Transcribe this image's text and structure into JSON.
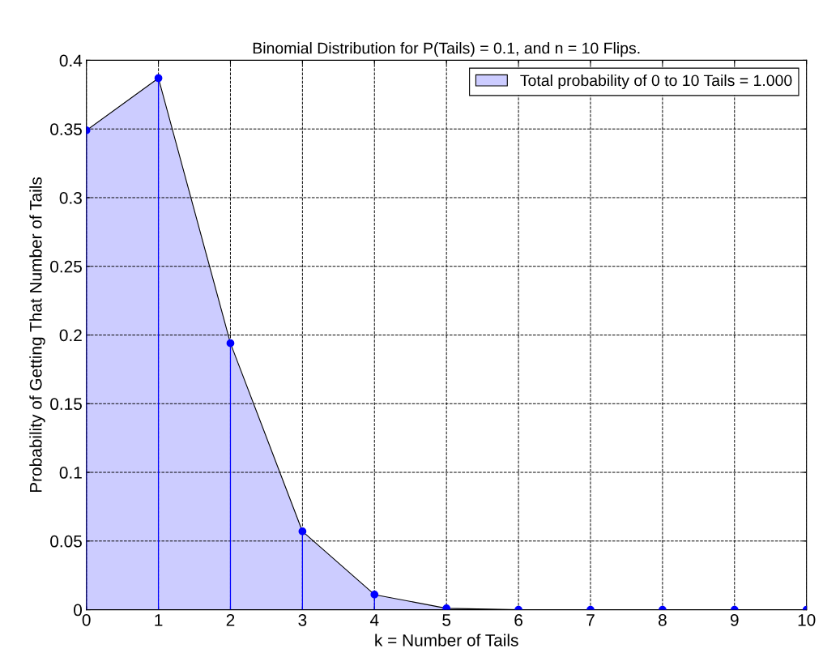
{
  "chart_data": {
    "type": "area",
    "title": "Binomial Distribution for P(Tails) = 0.1, and n = 10 Flips.",
    "xlabel": "k = Number of Tails",
    "ylabel": "Probability of Getting That Number of Tails",
    "x": [
      0,
      1,
      2,
      3,
      4,
      5,
      6,
      7,
      8,
      9,
      10
    ],
    "series": [
      {
        "name": "Total probability of 0 to 10 Tails = 1.000",
        "color": "#ccccff",
        "values": [
          0.349,
          0.387,
          0.194,
          0.057,
          0.011,
          0.001,
          0,
          0,
          0,
          0,
          0
        ]
      },
      {
        "type": "lollipop",
        "marker": "circle",
        "color": "#0000ff",
        "values": [
          0.349,
          0.387,
          0.194,
          0.057,
          0.011,
          0.001,
          0,
          0,
          0,
          0,
          0
        ]
      }
    ],
    "xlim": [
      0,
      10
    ],
    "ylim": [
      0,
      0.4
    ],
    "xticks": [
      0,
      1,
      2,
      3,
      4,
      5,
      6,
      7,
      8,
      9,
      10
    ],
    "yticks": [
      0,
      0.05,
      0.1,
      0.15,
      0.2,
      0.25,
      0.3,
      0.35,
      0.4
    ],
    "grid": true,
    "legend": "top right",
    "line_style": "dashed"
  }
}
